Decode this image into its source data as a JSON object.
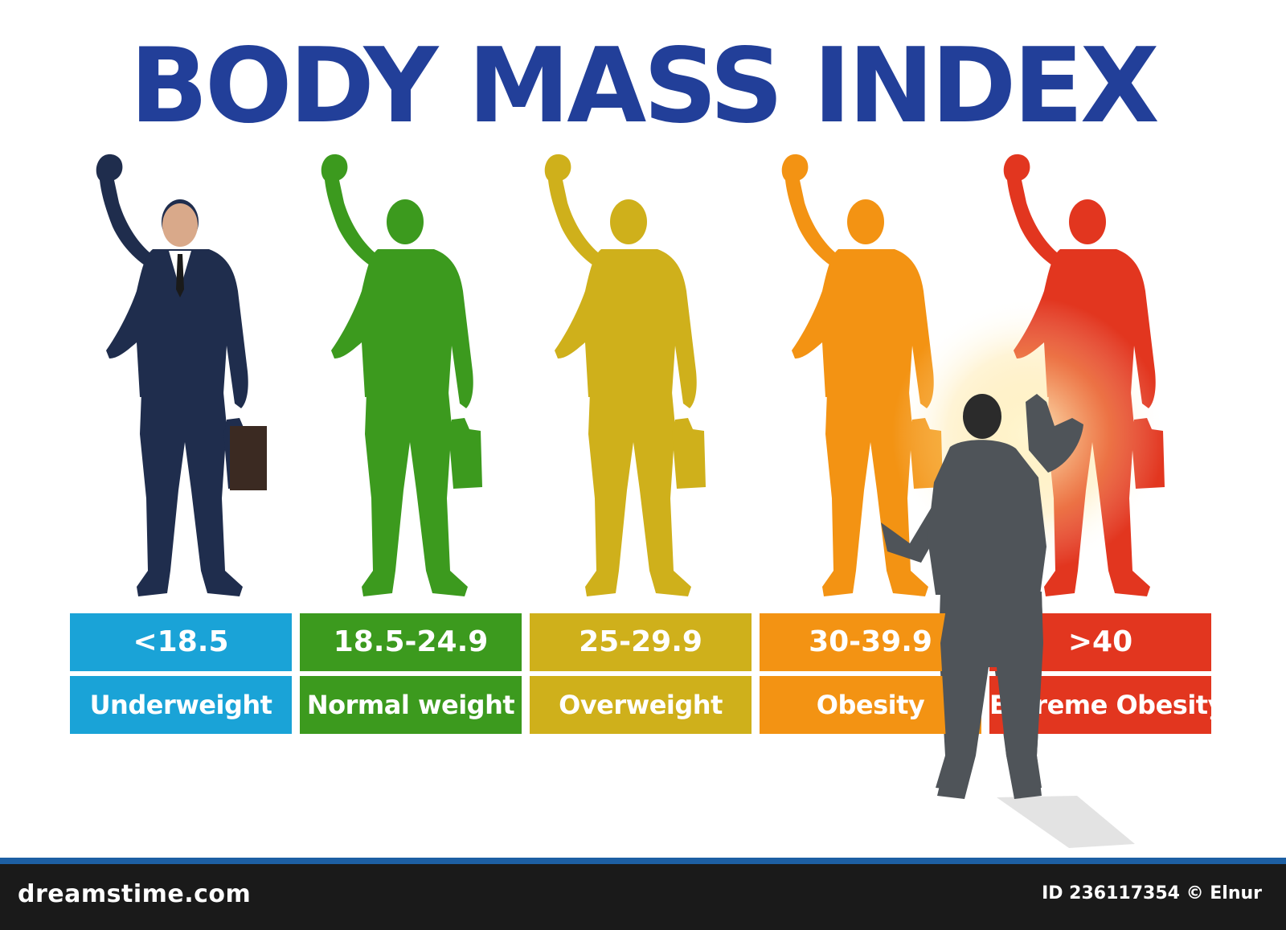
{
  "title": "BODY MASS INDEX",
  "categories": [
    {
      "range": "<18.5",
      "label": "Underweight",
      "color": "#1aa3d7"
    },
    {
      "range": "18.5-24.9",
      "label": "Normal weight",
      "color": "#3c9a1e"
    },
    {
      "range": "25-29.9",
      "label": "Overweight",
      "color": "#cfb01b"
    },
    {
      "range": "30-39.9",
      "label": "Obesity",
      "color": "#f39313"
    },
    {
      "range": ">40",
      "label": "Extreme Obesity",
      "color": "#e2361f"
    }
  ],
  "footer": {
    "brand": "dreamstime.com",
    "credit": "ID 236117354 © Elnur"
  },
  "colors": {
    "title": "#223f99",
    "suit_navy": "#1f2d4d",
    "suit_grey": "#4f5459",
    "footer_bg": "#1a1a1a"
  }
}
